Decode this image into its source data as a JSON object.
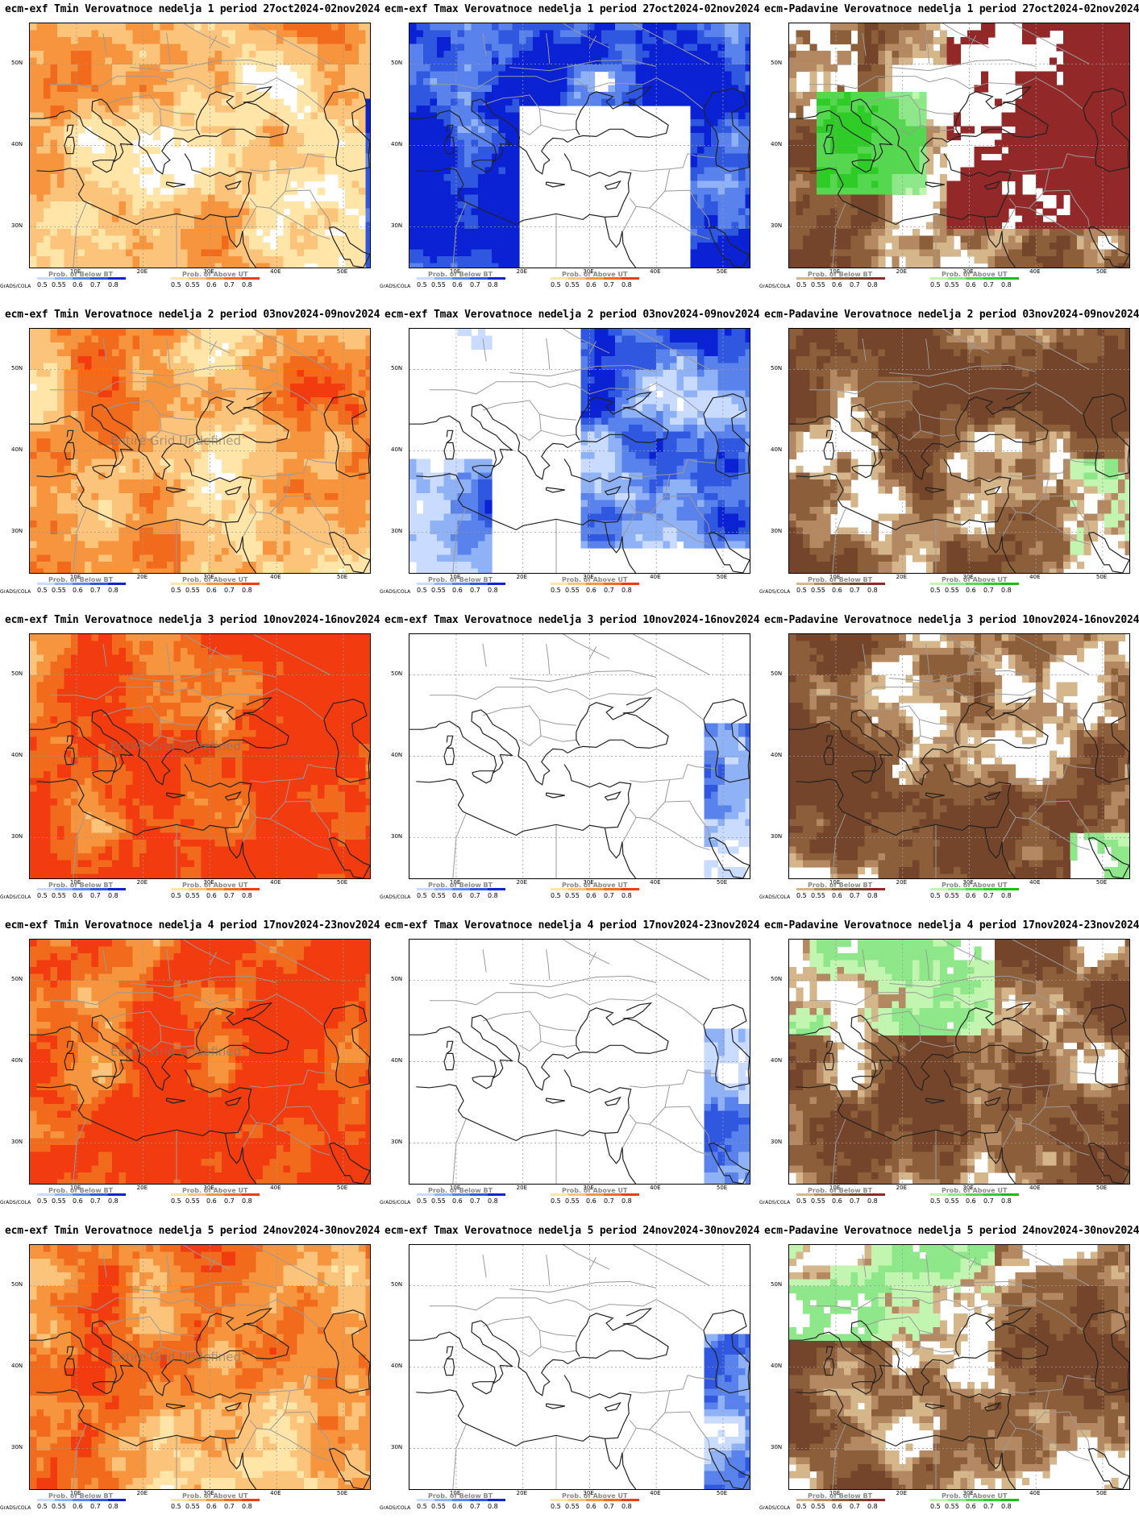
{
  "map_labels": {
    "lat": [
      "50N",
      "40N",
      "30N"
    ],
    "lon": [
      "10E",
      "20E",
      "30E",
      "40E",
      "50E"
    ],
    "undefined_note": "Entire Grid Undefined",
    "grads_label": "GrADS/COLA",
    "prob_below": "Prob. of Below BT",
    "prob_above": "Prob. of Above UT",
    "ticks_left": [
      "0.5",
      "0.55",
      "0.6",
      "0.7",
      "0.8"
    ],
    "ticks_right": [
      "0.5",
      "0.55",
      "0.6",
      "0.7",
      "0.8"
    ]
  },
  "colors": {
    "warm": [
      "#ffe6a8",
      "#fcc47a",
      "#f7953f",
      "#f26a1b",
      "#f23b0f"
    ],
    "cool": [
      "#c9dcff",
      "#8fb1f5",
      "#5a82ec",
      "#2f57e0",
      "#0a22d4"
    ],
    "dry": [
      "#d4b68a",
      "#b48860",
      "#8c5f3a",
      "#74452a",
      "#922828"
    ],
    "wet": [
      "#c2f5b0",
      "#8ee88a",
      "#55d74f",
      "#2fcc28",
      "#17bd15"
    ]
  },
  "panels": [
    {
      "title": "ecm-exf Tmin Verovatnoce nedelja 1 period 27oct2024-02nov2024",
      "kind": "tmin",
      "week": 1,
      "undefined": false
    },
    {
      "title": "ecm-exf Tmax Verovatnoce nedelja 1 period 27oct2024-02nov2024",
      "kind": "tmax",
      "week": 1,
      "undefined": false
    },
    {
      "title": "ecm-Padavine Verovatnoce nedelja 1 period 27oct2024-02nov2024",
      "kind": "prec",
      "week": 1,
      "undefined": false
    },
    {
      "title": "ecm-exf Tmin Verovatnoce nedelja 2 period 03nov2024-09nov2024",
      "kind": "tmin",
      "week": 2,
      "undefined": true
    },
    {
      "title": "ecm-exf Tmax Verovatnoce nedelja 2 period 03nov2024-09nov2024",
      "kind": "tmax",
      "week": 2,
      "undefined": false
    },
    {
      "title": "ecm-Padavine Verovatnoce nedelja 2 period 03nov2024-09nov2024",
      "kind": "prec",
      "week": 2,
      "undefined": false
    },
    {
      "title": "ecm-exf Tmin Verovatnoce nedelja 3 period 10nov2024-16nov2024",
      "kind": "tmin",
      "week": 3,
      "undefined": true
    },
    {
      "title": "ecm-exf Tmax Verovatnoce nedelja 3 period 10nov2024-16nov2024",
      "kind": "tmax",
      "week": 3,
      "undefined": false
    },
    {
      "title": "ecm-Padavine Verovatnoce nedelja 3 period 10nov2024-16nov2024",
      "kind": "prec",
      "week": 3,
      "undefined": false
    },
    {
      "title": "ecm-exf Tmin Verovatnoce nedelja 4 period 17nov2024-23nov2024",
      "kind": "tmin",
      "week": 4,
      "undefined": true
    },
    {
      "title": "ecm-exf Tmax Verovatnoce nedelja 4 period 17nov2024-23nov2024",
      "kind": "tmax",
      "week": 4,
      "undefined": false
    },
    {
      "title": "ecm-Padavine Verovatnoce nedelja 4 period 17nov2024-23nov2024",
      "kind": "prec",
      "week": 4,
      "undefined": false
    },
    {
      "title": "ecm-exf Tmin Verovatnoce nedelja 5 period 24nov2024-30nov2024",
      "kind": "tmin",
      "week": 5,
      "undefined": true
    },
    {
      "title": "ecm-exf Tmax Verovatnoce nedelja 5 period 24nov2024-30nov2024",
      "kind": "tmax",
      "week": 5,
      "undefined": false
    },
    {
      "title": "ecm-Padavine Verovatnoce nedelja 5 period 24nov2024-30nov2024",
      "kind": "prec",
      "week": 5,
      "undefined": false
    }
  ]
}
